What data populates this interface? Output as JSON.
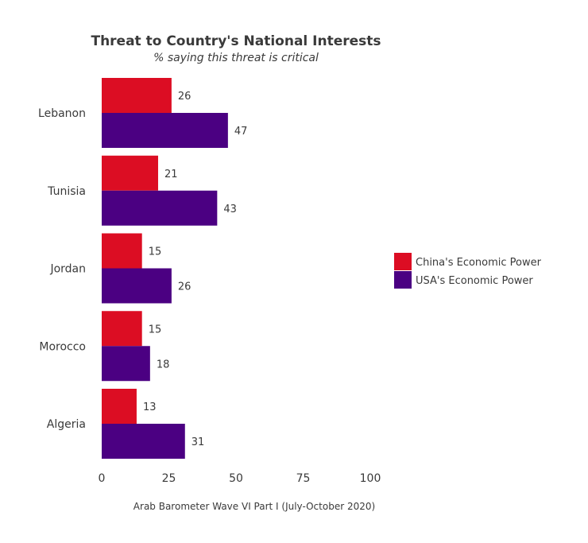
{
  "chart_data": {
    "type": "bar",
    "orientation": "horizontal",
    "title": "Threat to Country's National Interests",
    "subtitle": "% saying this threat is critical",
    "caption": "Arab Barometer Wave VI Part I (July-October 2020)",
    "categories": [
      "Lebanon",
      "Tunisia",
      "Jordan",
      "Morocco",
      "Algeria"
    ],
    "series": [
      {
        "name": "China's Economic Power",
        "color": "#DC0D23",
        "values": [
          26,
          21,
          15,
          15,
          13
        ]
      },
      {
        "name": "USA's Economic Power",
        "color": "#4B0082",
        "values": [
          47,
          43,
          26,
          18,
          31
        ]
      }
    ],
    "xlim": [
      0,
      100
    ],
    "xticks": [
      0,
      25,
      50,
      75,
      100
    ],
    "grid": false,
    "legend": "right"
  }
}
